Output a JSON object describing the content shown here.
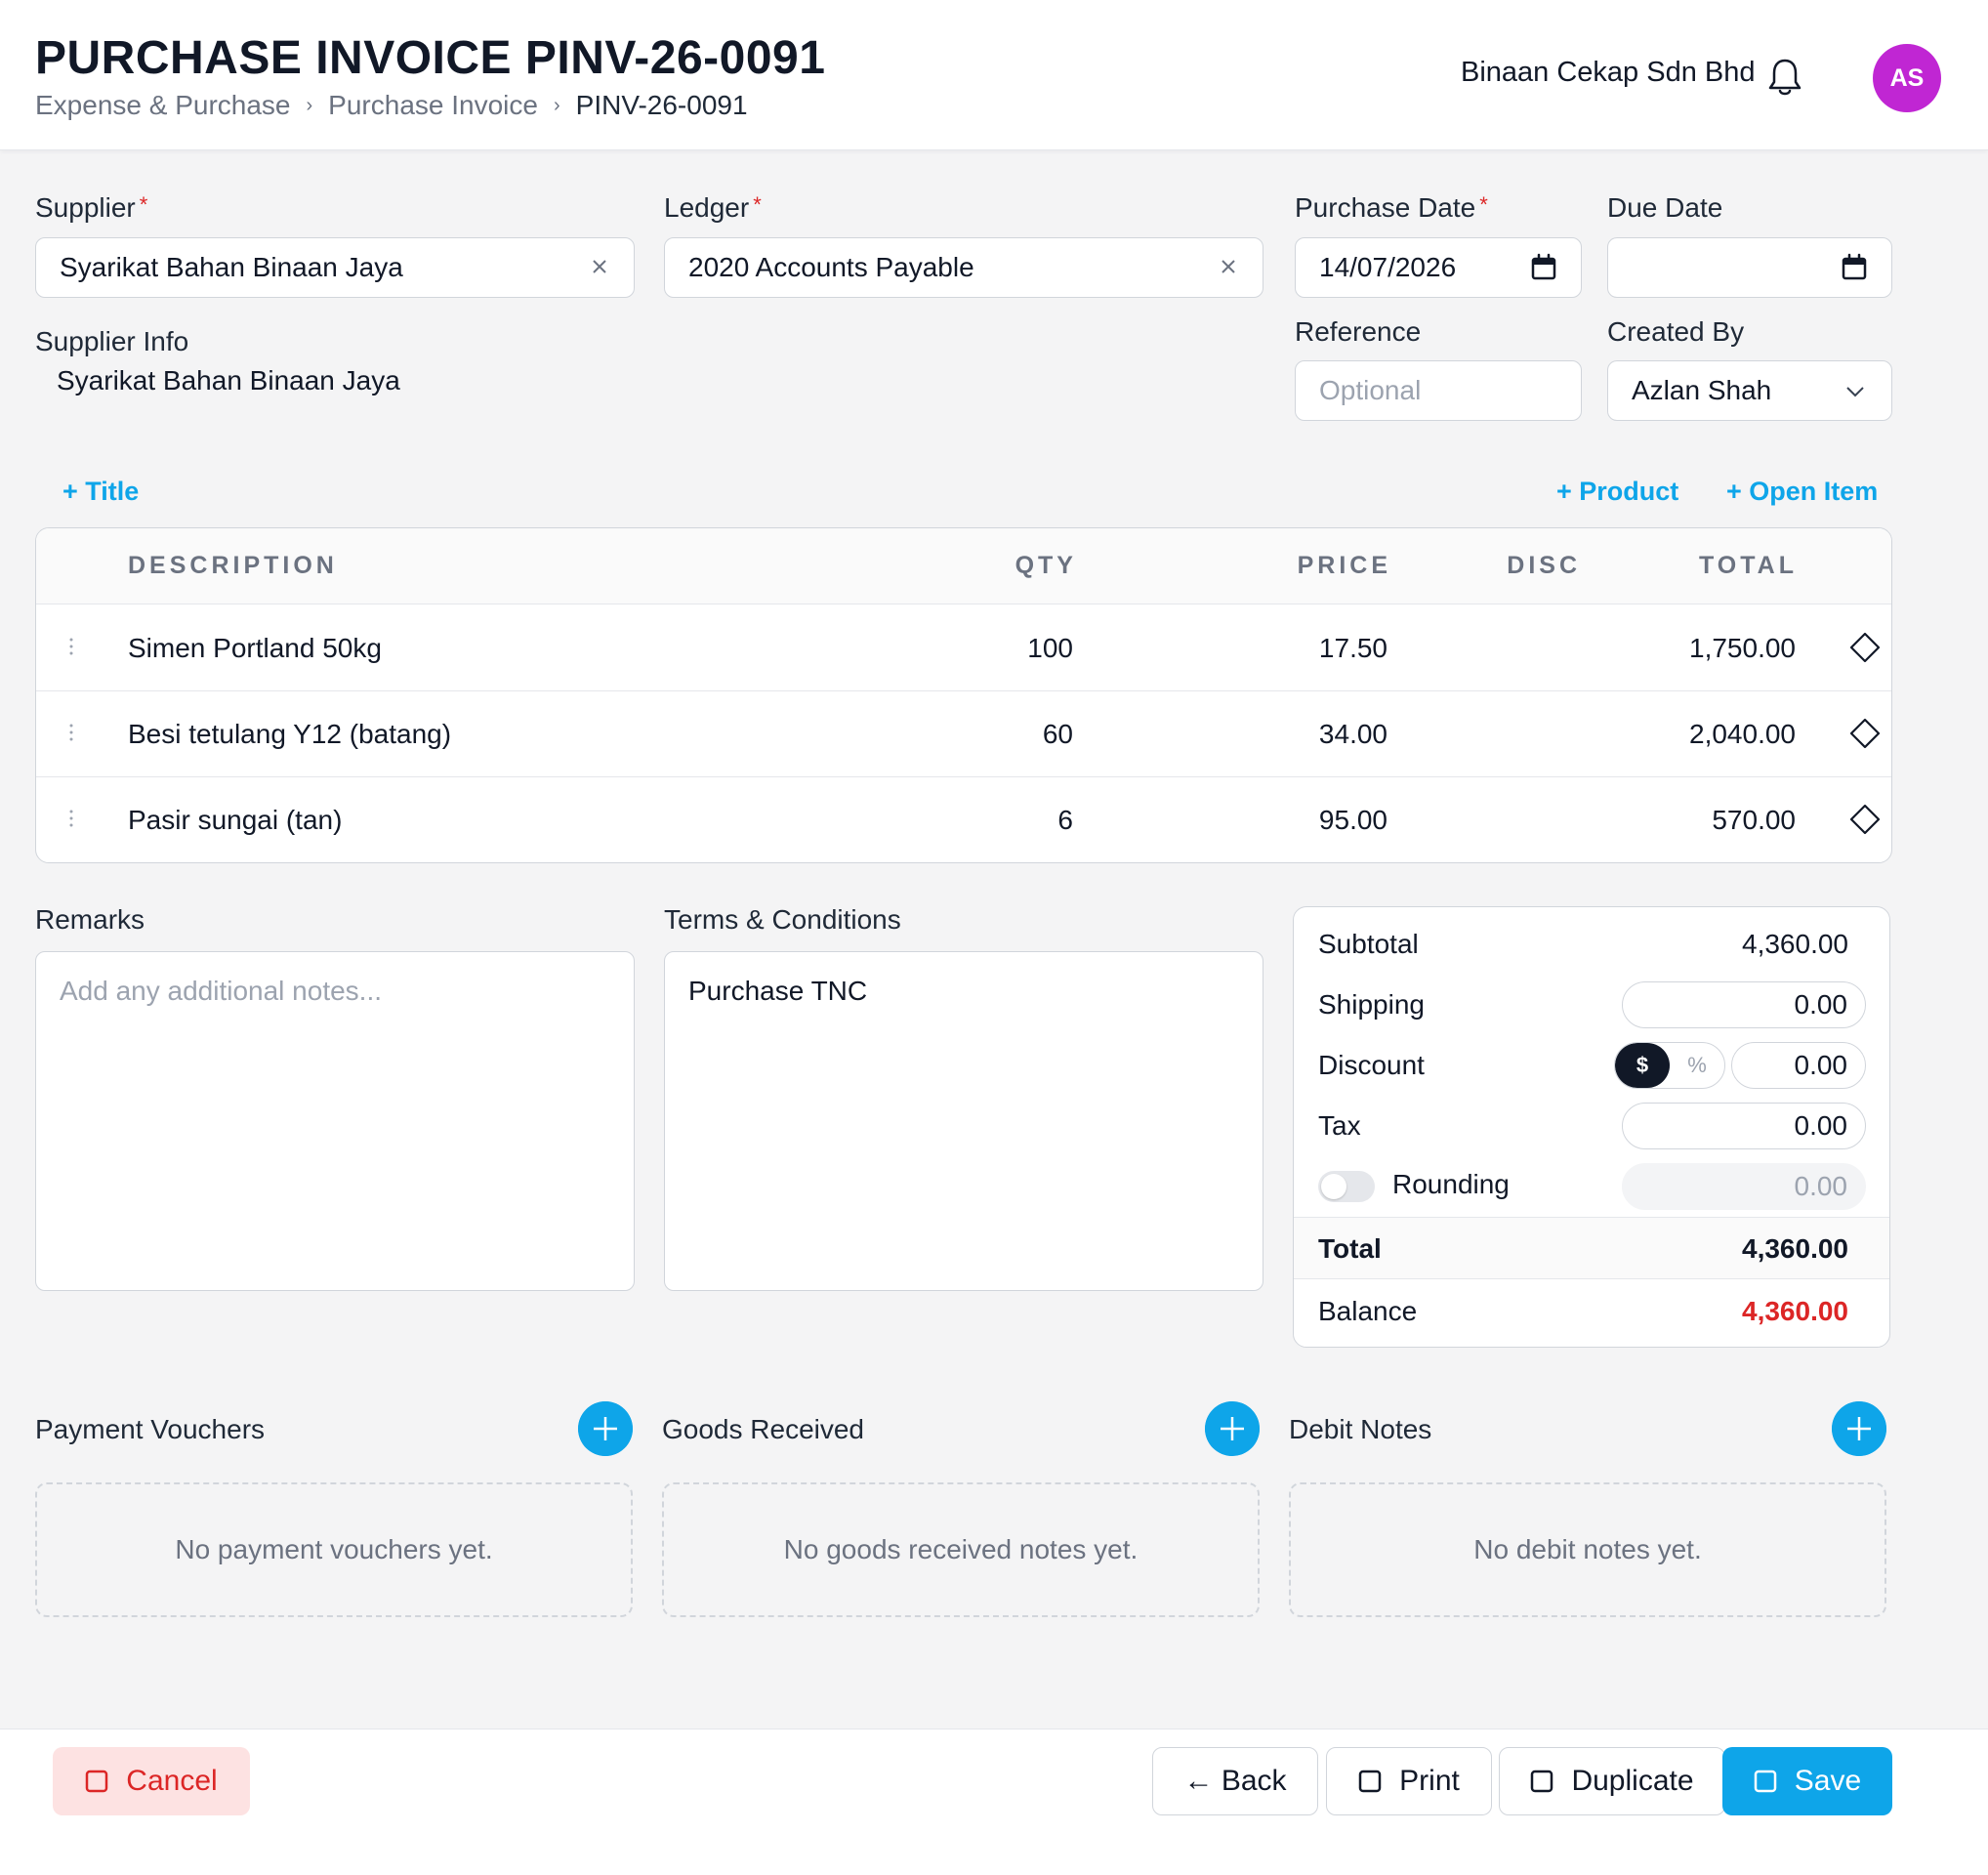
{
  "header": {
    "title": "PURCHASE INVOICE PINV-26-0091",
    "breadcrumb": [
      "Expense & Purchase",
      "Purchase Invoice",
      "PINV-26-0091"
    ],
    "company": "Binaan Cekap Sdn Bhd",
    "avatar_initials": "AS",
    "avatar_color": "#c026d3"
  },
  "form": {
    "supplier": {
      "label": "Supplier",
      "required_mark": "*",
      "value": "Syarikat Bahan Binaan Jaya"
    },
    "ledger": {
      "label": "Ledger",
      "required_mark": "*",
      "value": "2020 Accounts Payable"
    },
    "purchase_date": {
      "label": "Purchase Date",
      "required_mark": "*",
      "value": "14/07/2026"
    },
    "due_date": {
      "label": "Due Date",
      "value": ""
    },
    "supplier_info": {
      "label": "Supplier Info",
      "value": "Syarikat Bahan Binaan Jaya"
    },
    "reference": {
      "label": "Reference",
      "placeholder": "Optional",
      "value": ""
    },
    "created_by": {
      "label": "Created By",
      "value": "Azlan Shah"
    }
  },
  "actions": {
    "add_title": "+ Title",
    "add_product": "+ Product",
    "add_open_item": "+ Open Item"
  },
  "items": {
    "columns": [
      "DESCRIPTION",
      "QTY",
      "PRICE",
      "DISC",
      "TOTAL"
    ],
    "rows": [
      {
        "description": "Simen Portland 50kg",
        "qty": "100",
        "price": "17.50",
        "disc": "",
        "total": "1,750.00"
      },
      {
        "description": "Besi tetulang Y12 (batang)",
        "qty": "60",
        "price": "34.00",
        "disc": "",
        "total": "2,040.00"
      },
      {
        "description": "Pasir sungai (tan)",
        "qty": "6",
        "price": "95.00",
        "disc": "",
        "total": "570.00"
      }
    ]
  },
  "remarks": {
    "label": "Remarks",
    "placeholder": "Add any additional notes..."
  },
  "terms": {
    "label": "Terms & Conditions",
    "value": "Purchase TNC"
  },
  "totals": {
    "subtotal_label": "Subtotal",
    "subtotal": "4,360.00",
    "shipping_label": "Shipping",
    "shipping": "0.00",
    "discount_label": "Discount",
    "discount_mode_amount": "$",
    "discount_mode_percent": "%",
    "discount": "0.00",
    "tax_label": "Tax",
    "tax": "0.00",
    "rounding_label": "Rounding",
    "rounding": "0.00",
    "rounding_enabled": false,
    "total_label": "Total",
    "total": "4,360.00",
    "balance_label": "Balance",
    "balance": "4,360.00",
    "balance_color": "#dc2626"
  },
  "related": {
    "payment_vouchers": {
      "label": "Payment Vouchers",
      "empty": "No payment vouchers yet."
    },
    "goods_received": {
      "label": "Goods Received",
      "empty": "No goods received notes yet."
    },
    "debit_notes": {
      "label": "Debit Notes",
      "empty": "No debit notes yet."
    }
  },
  "footer": {
    "cancel": "Cancel",
    "back": "← Back",
    "print": "Print",
    "duplicate": "Duplicate",
    "save": "Save"
  },
  "colors": {
    "accent": "#0ea5e9",
    "danger": "#dc2626"
  }
}
